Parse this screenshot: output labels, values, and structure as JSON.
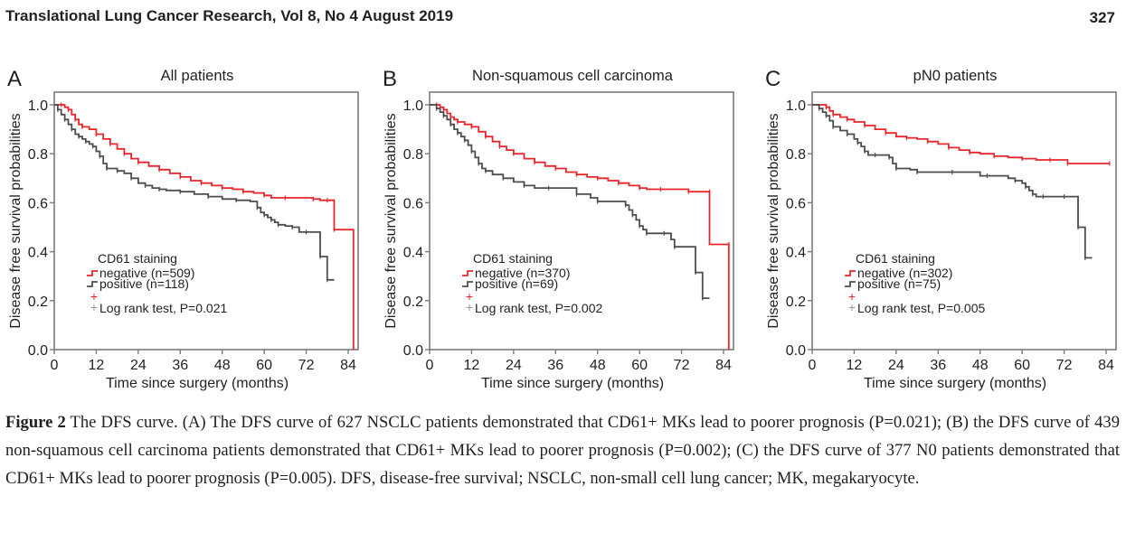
{
  "header": {
    "journal": "Translational Lung Cancer Research, Vol 8, No 4 August 2019",
    "page_number": "327"
  },
  "colors": {
    "negative": "#e8262b",
    "positive": "#4d4d4d",
    "axis": "#7a7a7a",
    "text": "#231f20"
  },
  "chart_data": [
    {
      "type": "line",
      "subtype": "kaplan-meier",
      "panel_letter": "A",
      "title": "All patients",
      "xlabel": "Time since surgery (months)",
      "ylabel": "Disease free survival probabilities",
      "xlim": [
        0,
        87
      ],
      "ylim": [
        0,
        1.05
      ],
      "xticks": [
        "0",
        "12",
        "24",
        "36",
        "48",
        "60",
        "72",
        "84"
      ],
      "yticks": [
        "0.0",
        "0.2",
        "0.4",
        "0.6",
        "0.8",
        "1.0"
      ],
      "legend": {
        "title": "CD61 staining",
        "entries": [
          "negative (n=509)",
          "positive (n=118)"
        ],
        "test": "Log rank test, P=0.021",
        "placement": "lower-left"
      },
      "series": [
        {
          "name": "negative (n=509)",
          "key": "negative",
          "x": [
            0,
            2,
            3,
            4,
            5,
            6,
            7,
            8,
            10,
            12,
            14,
            16,
            18,
            20,
            22,
            24,
            27,
            30,
            33,
            36,
            39,
            42,
            45,
            48,
            51,
            54,
            57,
            60,
            62,
            66,
            70,
            74,
            76,
            78,
            80,
            80,
            85.5,
            85.5
          ],
          "y": [
            1.0,
            1.0,
            0.99,
            0.98,
            0.96,
            0.94,
            0.92,
            0.91,
            0.9,
            0.88,
            0.86,
            0.84,
            0.82,
            0.8,
            0.78,
            0.765,
            0.75,
            0.735,
            0.72,
            0.705,
            0.69,
            0.68,
            0.67,
            0.66,
            0.655,
            0.645,
            0.64,
            0.63,
            0.62,
            0.62,
            0.62,
            0.615,
            0.61,
            0.61,
            0.61,
            0.49,
            0.49,
            0.0
          ]
        },
        {
          "name": "positive (n=118)",
          "key": "positive",
          "x": [
            0,
            1,
            2,
            3,
            4,
            5,
            6,
            7,
            8,
            9,
            10,
            11,
            12,
            13,
            14,
            15,
            16,
            18,
            20,
            22,
            24,
            26,
            28,
            30,
            32,
            36,
            40,
            44,
            48,
            52,
            56,
            58,
            59,
            60,
            61,
            62,
            63,
            64,
            66,
            68,
            70,
            72,
            76,
            76,
            78,
            78,
            80
          ],
          "y": [
            1.0,
            0.98,
            0.96,
            0.94,
            0.92,
            0.9,
            0.88,
            0.87,
            0.86,
            0.85,
            0.84,
            0.83,
            0.81,
            0.79,
            0.76,
            0.74,
            0.74,
            0.73,
            0.72,
            0.7,
            0.68,
            0.67,
            0.66,
            0.655,
            0.65,
            0.645,
            0.635,
            0.625,
            0.615,
            0.61,
            0.605,
            0.58,
            0.56,
            0.55,
            0.54,
            0.53,
            0.52,
            0.51,
            0.505,
            0.5,
            0.48,
            0.48,
            0.475,
            0.38,
            0.38,
            0.285,
            0.285
          ]
        }
      ]
    },
    {
      "type": "line",
      "subtype": "kaplan-meier",
      "panel_letter": "B",
      "title": "Non-squamous cell carcinoma",
      "xlabel": "Time since surgery (months)",
      "ylabel": "Disease free survival probabilities",
      "xlim": [
        0,
        87
      ],
      "ylim": [
        0,
        1.05
      ],
      "xticks": [
        "0",
        "12",
        "24",
        "36",
        "48",
        "60",
        "72",
        "84"
      ],
      "yticks": [
        "0.0",
        "0.2",
        "0.4",
        "0.6",
        "0.8",
        "1.0"
      ],
      "legend": {
        "title": "CD61 staining",
        "entries": [
          "negative (n=370)",
          "positive (n=69)"
        ],
        "test": "Log rank test, P=0.002",
        "placement": "lower-left"
      },
      "series": [
        {
          "name": "negative (n=370)",
          "key": "negative",
          "x": [
            0,
            2,
            3,
            4,
            5,
            6,
            7,
            8,
            10,
            12,
            14,
            16,
            18,
            20,
            22,
            24,
            27,
            30,
            33,
            36,
            39,
            42,
            45,
            48,
            51,
            54,
            57,
            60,
            62,
            66,
            70,
            74,
            76,
            80,
            80,
            85.5,
            85.5
          ],
          "y": [
            1.0,
            1.0,
            0.99,
            0.98,
            0.965,
            0.95,
            0.94,
            0.93,
            0.92,
            0.91,
            0.89,
            0.87,
            0.85,
            0.83,
            0.815,
            0.8,
            0.78,
            0.765,
            0.75,
            0.74,
            0.725,
            0.715,
            0.705,
            0.7,
            0.69,
            0.68,
            0.67,
            0.66,
            0.655,
            0.655,
            0.655,
            0.645,
            0.645,
            0.645,
            0.43,
            0.43,
            0.0
          ]
        },
        {
          "name": "positive (n=69)",
          "key": "positive",
          "x": [
            0,
            2,
            3,
            4,
            5,
            6,
            7,
            8,
            9,
            10,
            11,
            12,
            13,
            14,
            15,
            16,
            18,
            21,
            24,
            27,
            30,
            34,
            38,
            42,
            46,
            48,
            52,
            56,
            57,
            58,
            59,
            60,
            61,
            62,
            64,
            67,
            69,
            70,
            75,
            76,
            78,
            78,
            80
          ],
          "y": [
            1.0,
            0.985,
            0.97,
            0.955,
            0.94,
            0.92,
            0.9,
            0.885,
            0.87,
            0.855,
            0.835,
            0.81,
            0.785,
            0.76,
            0.74,
            0.73,
            0.715,
            0.7,
            0.685,
            0.67,
            0.66,
            0.66,
            0.66,
            0.635,
            0.62,
            0.605,
            0.605,
            0.59,
            0.57,
            0.55,
            0.53,
            0.505,
            0.49,
            0.475,
            0.475,
            0.475,
            0.45,
            0.42,
            0.42,
            0.315,
            0.315,
            0.21,
            0.21
          ]
        }
      ]
    },
    {
      "type": "line",
      "subtype": "kaplan-meier",
      "panel_letter": "C",
      "title": "pN0 patients",
      "xlabel": "Time since surgery (months)",
      "ylabel": "Disease free survival probabilities",
      "xlim": [
        0,
        87
      ],
      "ylim": [
        0,
        1.05
      ],
      "xticks": [
        "0",
        "12",
        "24",
        "36",
        "48",
        "60",
        "72",
        "84"
      ],
      "yticks": [
        "0.0",
        "0.2",
        "0.4",
        "0.6",
        "0.8",
        "1.0"
      ],
      "legend": {
        "title": "CD61 staining",
        "entries": [
          "negative (n=302)",
          "positive (n=75)"
        ],
        "test": "Log rank test, P=0.005",
        "placement": "lower-left"
      },
      "series": [
        {
          "name": "negative (n=302)",
          "key": "negative",
          "x": [
            0,
            4,
            5,
            6,
            8,
            10,
            12,
            15,
            18,
            21,
            24,
            27,
            30,
            33,
            36,
            39,
            42,
            45,
            48,
            52,
            56,
            60,
            64,
            68,
            72,
            73,
            78,
            85
          ],
          "y": [
            1.0,
            0.99,
            0.975,
            0.96,
            0.95,
            0.94,
            0.93,
            0.915,
            0.9,
            0.885,
            0.87,
            0.865,
            0.86,
            0.85,
            0.84,
            0.825,
            0.815,
            0.805,
            0.8,
            0.79,
            0.785,
            0.78,
            0.775,
            0.775,
            0.775,
            0.76,
            0.76,
            0.76
          ]
        },
        {
          "name": "positive (n=75)",
          "key": "positive",
          "x": [
            0,
            2,
            3,
            4,
            5,
            6,
            8,
            10,
            12,
            13,
            14,
            15,
            16,
            18,
            20,
            22,
            23,
            24,
            28,
            30,
            34,
            40,
            48,
            50,
            56,
            58,
            60,
            61,
            62,
            63,
            64,
            66,
            70,
            72,
            76,
            76,
            78,
            78,
            80
          ],
          "y": [
            1.0,
            0.985,
            0.97,
            0.955,
            0.935,
            0.91,
            0.895,
            0.88,
            0.86,
            0.845,
            0.83,
            0.81,
            0.795,
            0.795,
            0.795,
            0.785,
            0.76,
            0.74,
            0.735,
            0.725,
            0.725,
            0.725,
            0.71,
            0.71,
            0.7,
            0.69,
            0.68,
            0.665,
            0.65,
            0.635,
            0.625,
            0.625,
            0.625,
            0.625,
            0.62,
            0.5,
            0.5,
            0.375,
            0.375
          ]
        }
      ]
    }
  ],
  "caption": {
    "label": "Figure 2",
    "text": " The DFS curve. (A) The DFS curve of 627 NSCLC patients demonstrated that CD61+ MKs lead to poorer prognosis (P=0.021); (B) the DFS curve of 439 non-squamous cell carcinoma patients demonstrated that CD61+ MKs lead to poorer prognosis (P=0.002); (C) the DFS curve of 377 N0 patients demonstrated that CD61+ MKs lead to poorer prognosis (P=0.005). DFS, disease-free survival; NSCLC, non-small cell lung cancer; MK, megakaryocyte."
  }
}
